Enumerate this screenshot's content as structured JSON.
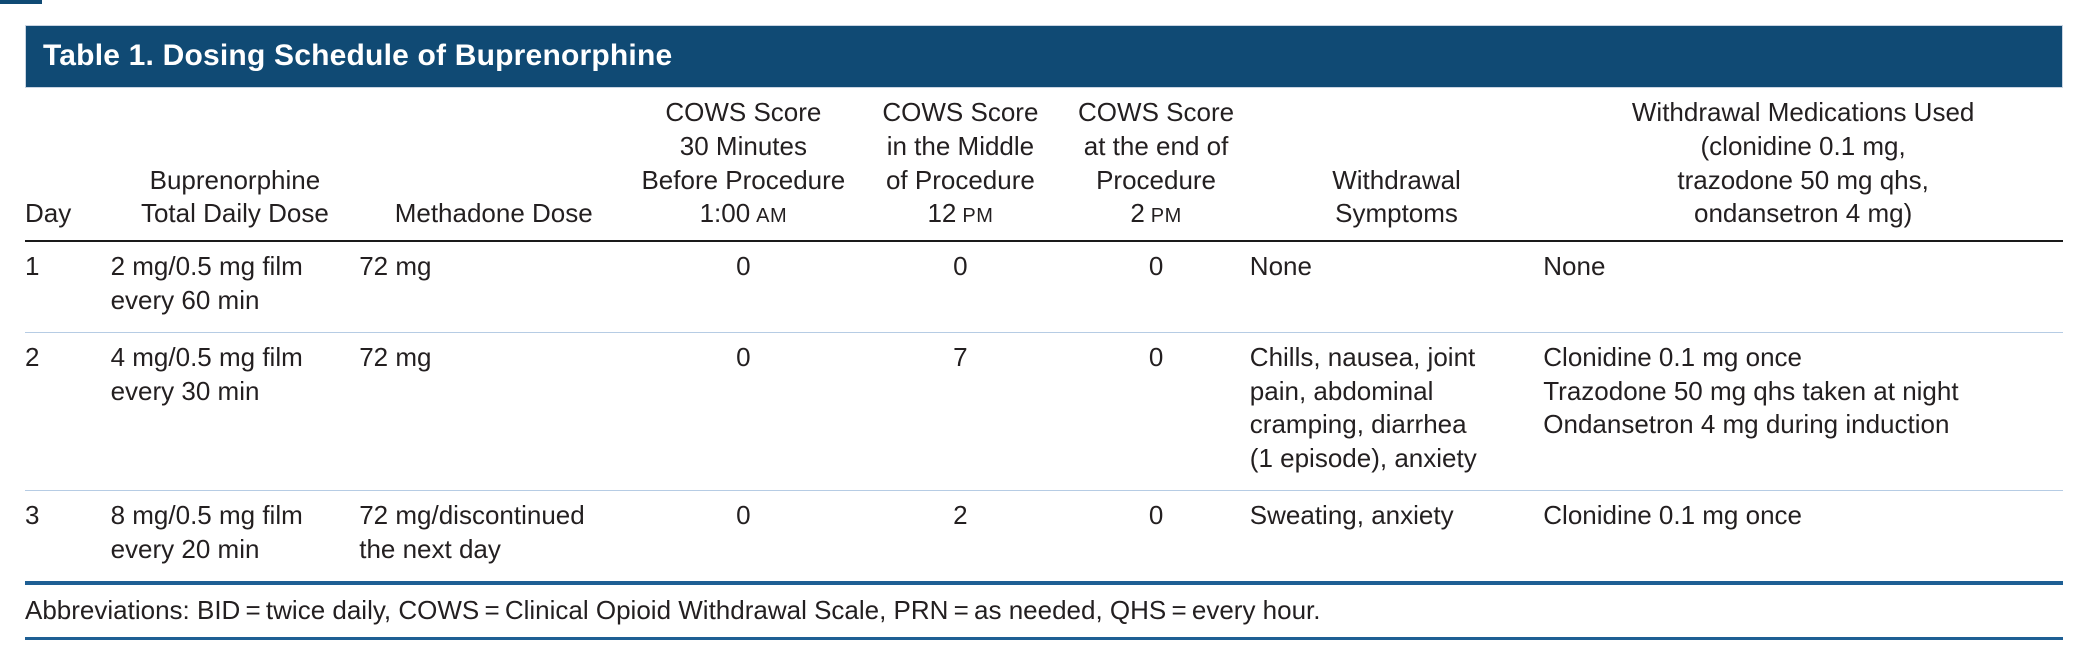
{
  "title": "Table 1. Dosing Schedule of Buprenorphine",
  "colors": {
    "title_bar_bg": "#104a74",
    "thick_rule_blue": "#1e5f94",
    "row_divider_blue": "#b6cce4",
    "header_underline": "#1a1a1a",
    "text": "#231f20"
  },
  "columns": {
    "day": {
      "label": "Day"
    },
    "buprenorphine": {
      "label": "Buprenorphine\nTotal Daily Dose"
    },
    "methadone": {
      "label": "Methadone Dose"
    },
    "cows_before": {
      "label": "COWS Score\n30 Minutes\nBefore Procedure",
      "time": "1:00",
      "meridiem": "AM"
    },
    "cows_middle": {
      "label": "COWS Score\nin the Middle\nof Procedure",
      "time": "12",
      "meridiem": "PM"
    },
    "cows_end": {
      "label": "COWS Score\nat the end of\nProcedure",
      "time": "2",
      "meridiem": "PM"
    },
    "symptoms": {
      "label": "Withdrawal\nSymptoms"
    },
    "medications": {
      "label": "Withdrawal Medications Used\n(clonidine 0.1 mg,\ntrazodone 50 mg qhs,\nondansetron 4 mg)"
    }
  },
  "rows": [
    {
      "day": "1",
      "buprenorphine": "2 mg/0.5 mg film\nevery 60 min",
      "methadone": "72 mg",
      "cows_before": "0",
      "cows_middle": "0",
      "cows_end": "0",
      "symptoms": "None",
      "medications": "None"
    },
    {
      "day": "2",
      "buprenorphine": "4 mg/0.5 mg film\nevery 30 min",
      "methadone": "72 mg",
      "cows_before": "0",
      "cows_middle": "7",
      "cows_end": "0",
      "symptoms": "Chills, nausea, joint\npain, abdominal\ncramping, diarrhea\n(1 episode), anxiety",
      "medications": "Clonidine 0.1 mg once\nTrazodone 50 mg qhs taken at night\nOndansetron 4 mg during induction"
    },
    {
      "day": "3",
      "buprenorphine": "8 mg/0.5 mg film\nevery 20 min",
      "methadone": "72 mg/discontinued\nthe next day",
      "cows_before": "0",
      "cows_middle": "2",
      "cows_end": "0",
      "symptoms": "Sweating, anxiety",
      "medications": "Clonidine 0.1 mg once"
    }
  ],
  "footnote": "Abbreviations: BID = twice daily, COWS = Clinical Opioid Withdrawal Scale, PRN = as needed, QHS = every hour."
}
